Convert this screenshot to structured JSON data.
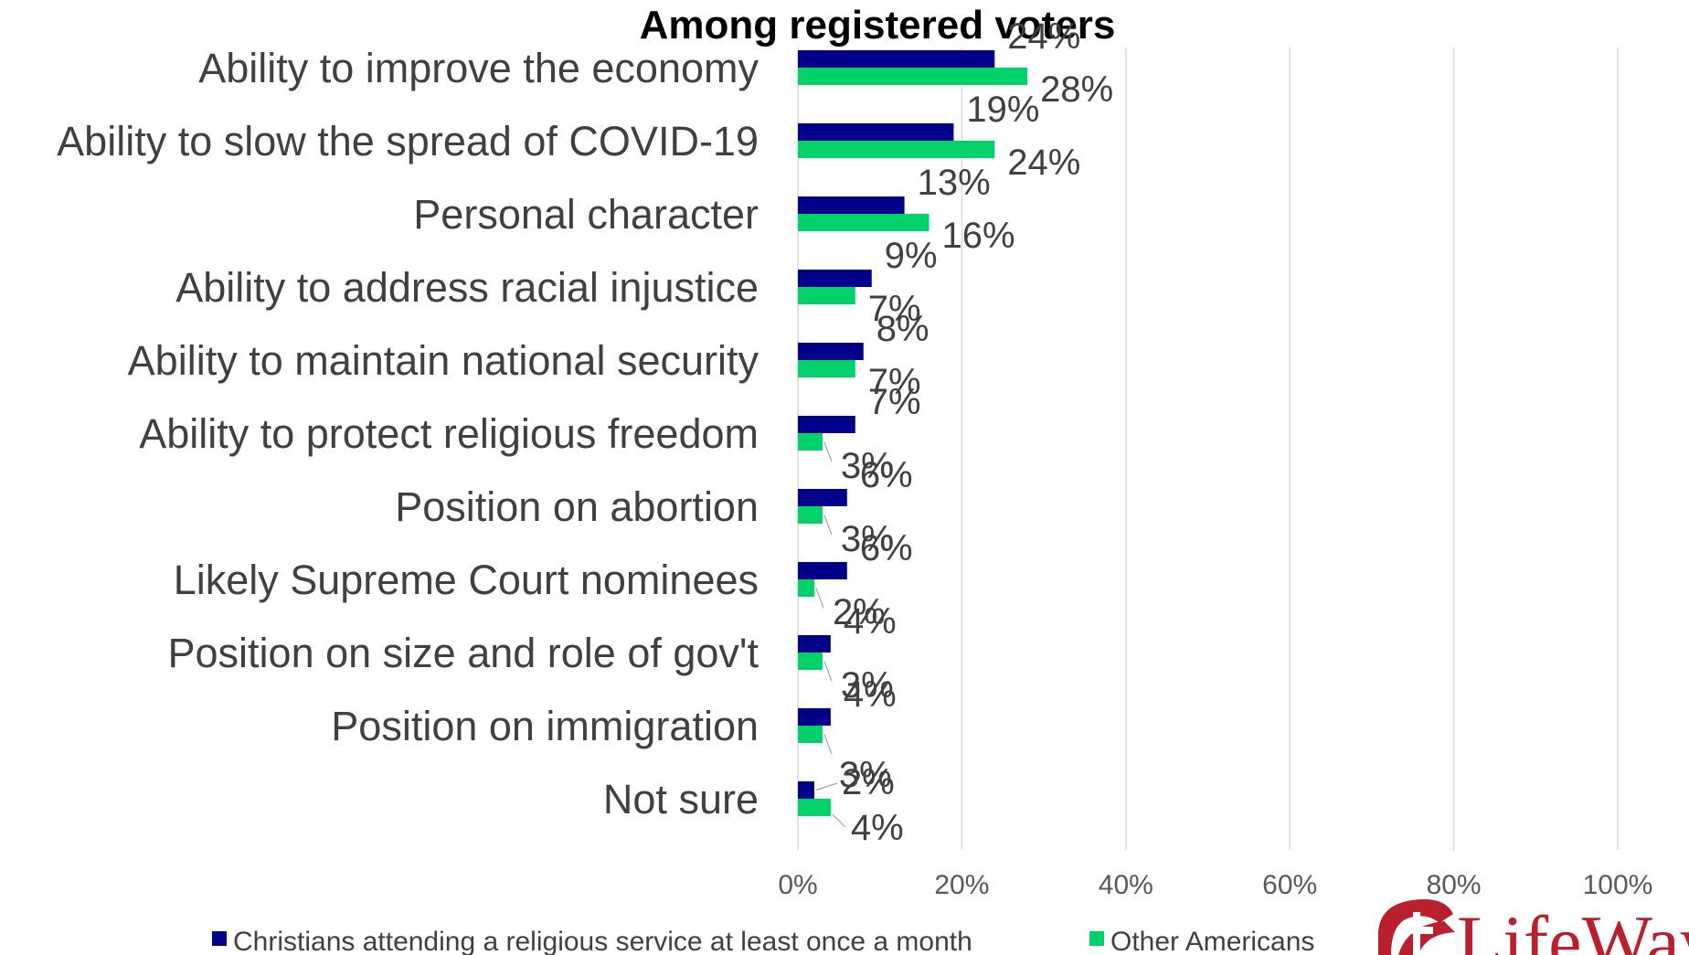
{
  "chart_data": {
    "type": "bar",
    "orientation": "horizontal",
    "title": "Among registered voters",
    "categories": [
      "Ability to improve the economy",
      "Ability to slow the spread of COVID-19",
      "Personal character",
      "Ability to address racial injustice",
      "Ability to maintain national security",
      "Ability to protect religious freedom",
      "Position on abortion",
      "Likely Supreme Court nominees",
      "Position on size and role of gov't",
      "Position on immigration",
      "Not sure"
    ],
    "series": [
      {
        "name": "Christians attending a religious service at least once a month",
        "color": "#00008b",
        "values": [
          24,
          19,
          13,
          9,
          8,
          7,
          6,
          6,
          4,
          4,
          2
        ],
        "labels": [
          "24%",
          "19%",
          "13%",
          "9%",
          "8%",
          "7%",
          "6%",
          "6%",
          "4%",
          "4%",
          "2%"
        ]
      },
      {
        "name": "Other Americans",
        "color": "#00d26a",
        "values": [
          28,
          24,
          16,
          7,
          7,
          3,
          3,
          2,
          3,
          3,
          4
        ],
        "labels": [
          "28%",
          "24%",
          "16%",
          "7%",
          "7%",
          "3%",
          "3%",
          "2%",
          "3%",
          "3%",
          "4%"
        ]
      }
    ],
    "xlim": [
      0,
      100
    ],
    "xticks": [
      0,
      20,
      40,
      60,
      80,
      100
    ],
    "xtick_labels": [
      "0%",
      "20%",
      "40%",
      "60%",
      "80%",
      "100%"
    ],
    "grid": "vertical",
    "legend_position": "bottom"
  },
  "logo": {
    "text": "LifeWay",
    "color": "#b8202e"
  }
}
